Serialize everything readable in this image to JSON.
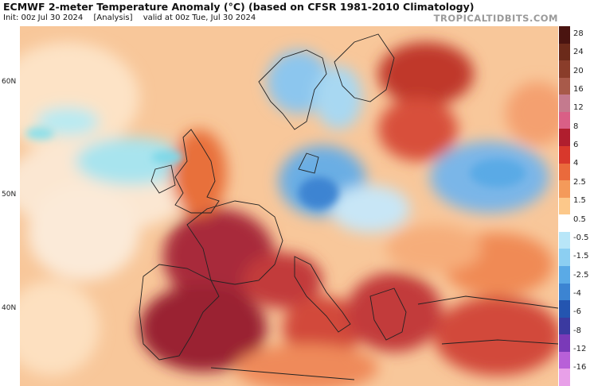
{
  "header": {
    "title": "ECMWF 2-meter Temperature Anomaly (°C) (based on CFSR 1981-2010 Climatology)",
    "init": "Init: 00z Jul 30 2024",
    "analysis": "[Analysis]",
    "valid": "valid at 00z Tue, Jul 30 2024"
  },
  "brand": "TROPICALTIDBITS.COM",
  "map": {
    "latitude_labels": [
      "60N",
      "50N",
      "40N"
    ],
    "colors": {
      "warm_extreme": "#8b1a2a",
      "warm_strong": "#c0392b",
      "warm": "#e8703a",
      "warm_mild": "#f6b37a",
      "neutral": "#ffffff",
      "cool_mild": "#a8dcf0",
      "cool": "#5aa8e0",
      "cool_strong": "#2f6fc0"
    }
  },
  "colorbar": {
    "labels": [
      "28",
      "24",
      "20",
      "16",
      "12",
      "8",
      "6",
      "4",
      "2.5",
      "1.5",
      "0.5",
      "-0.5",
      "-1.5",
      "-2.5",
      "-4",
      "-6",
      "-8",
      "-12",
      "-16"
    ],
    "colors": [
      "#4a1410",
      "#6b2a1a",
      "#8a3d2a",
      "#a85a4a",
      "#c47a8e",
      "#d95f86",
      "#b01e2e",
      "#d8382c",
      "#ea6a3c",
      "#f49a5a",
      "#fcc88a",
      "#ffffff",
      "#b8e6f8",
      "#8ccff2",
      "#5aaae6",
      "#3c84d2",
      "#2455b0",
      "#3b3aa0",
      "#7a3ab8",
      "#b860d8",
      "#e8a0e8"
    ]
  }
}
